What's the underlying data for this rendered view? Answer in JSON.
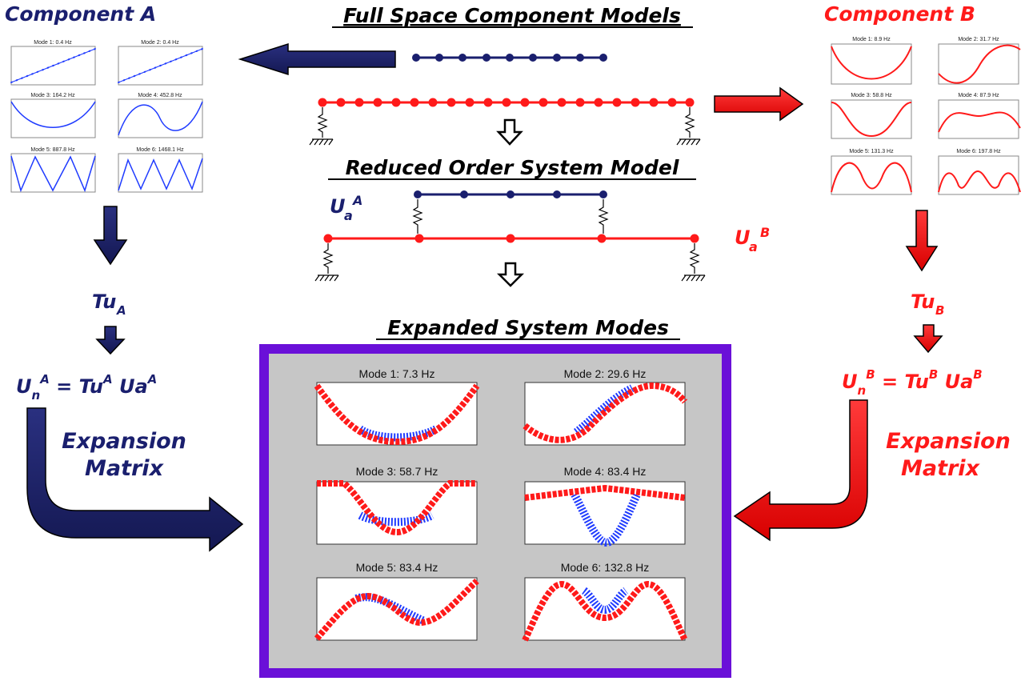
{
  "headers": {
    "full_space": "Full Space Component Models",
    "reduced_order": "Reduced Order System Model",
    "expanded": "Expanded System Modes",
    "component_a": "Component A",
    "component_b": "Component B"
  },
  "labels": {
    "ua_a_main": "U",
    "ua_a_sub": "a",
    "ua_a_sup": "A",
    "ua_b_main": "U",
    "ua_b_sub": "a",
    "ua_b_sup": "B",
    "tu_a_main": "Tu",
    "tu_a_sub": "A",
    "tu_b_main": "Tu",
    "tu_b_sub": "B",
    "eq_a": {
      "u": "U",
      "n": "n",
      "a1": "A",
      "eq": " = Tu",
      "a2": "A",
      "ua": " Ua",
      "a3": "A"
    },
    "eq_b": {
      "u": "U",
      "n": "n",
      "b1": "B",
      "eq": " = Tu",
      "b2": "B",
      "ua": " Ua",
      "b3": "B"
    },
    "expansion_a_line1": "Expansion",
    "expansion_a_line2": "Matrix",
    "expansion_b_line1": "Expansion",
    "expansion_b_line2": "Matrix"
  },
  "component_a_modes": [
    {
      "title": "Mode 1: 0.4 Hz"
    },
    {
      "title": "Mode 2: 0.4 Hz"
    },
    {
      "title": "Mode 3: 164.2 Hz"
    },
    {
      "title": "Mode 4: 452.8 Hz"
    },
    {
      "title": "Mode 5: 887.8 Hz"
    },
    {
      "title": "Mode 6: 1468.1 Hz"
    }
  ],
  "component_b_modes": [
    {
      "title": "Mode 1: 8.9 Hz"
    },
    {
      "title": "Mode 2: 31.7 Hz"
    },
    {
      "title": "Mode 3: 58.8 Hz"
    },
    {
      "title": "Mode 4: 87.9 Hz"
    },
    {
      "title": "Mode 5: 131.3 Hz"
    },
    {
      "title": "Mode 6: 197.8 Hz"
    }
  ],
  "system_modes": [
    {
      "title": "Mode 1: 7.3 Hz"
    },
    {
      "title": "Mode 2: 29.6 Hz"
    },
    {
      "title": "Mode 3: 58.7 Hz"
    },
    {
      "title": "Mode 4: 83.4 Hz"
    },
    {
      "title": "Mode 5: 83.4 Hz"
    },
    {
      "title": "Mode 6: 132.8 Hz"
    }
  ],
  "colors": {
    "navy": "#1a1f6e",
    "blue": "#1f3bff",
    "red": "#ff1a1a",
    "purple": "#6a10d8",
    "panel_gray": "#c6c6c6"
  }
}
